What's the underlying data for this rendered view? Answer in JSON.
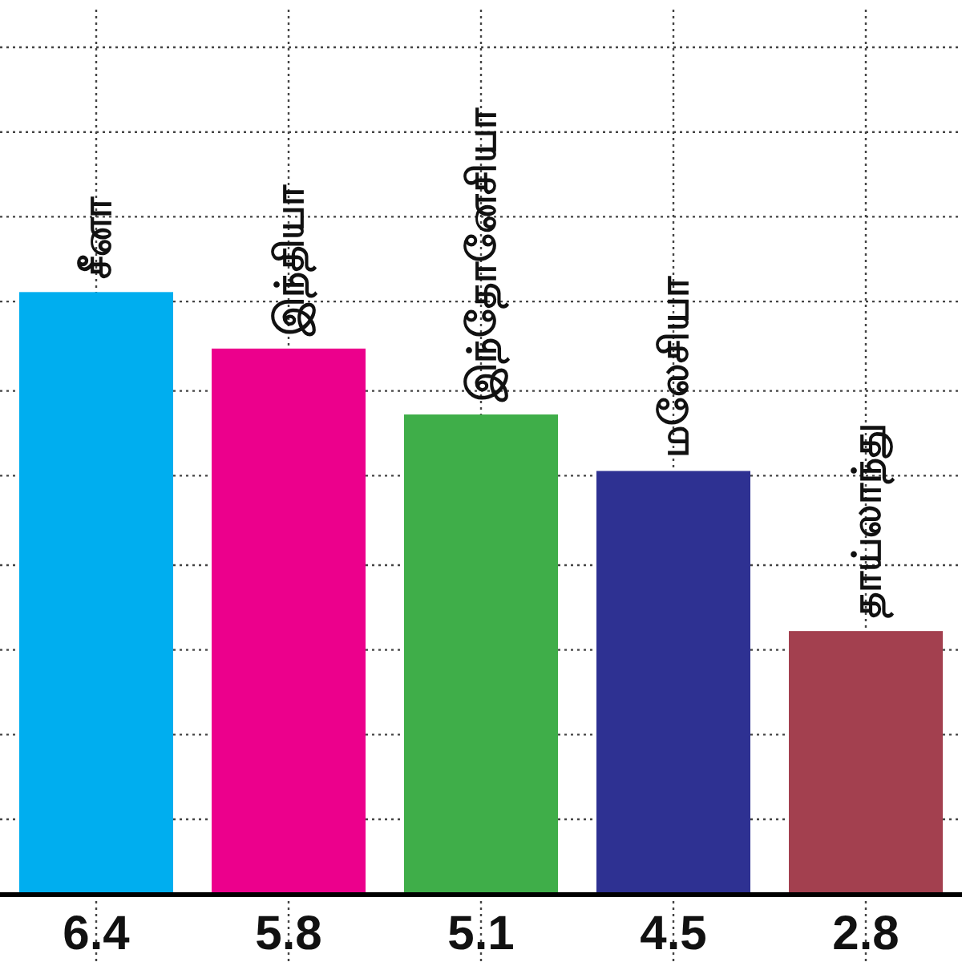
{
  "chart_data": {
    "type": "bar",
    "categories": [
      "சீனா",
      "இந்தியா",
      "இந்தோனேசியா",
      "மலேசியா",
      "தாய்லாந்து"
    ],
    "values": [
      6.4,
      5.8,
      5.1,
      4.5,
      2.8
    ],
    "colors": [
      "#00aeef",
      "#ec008c",
      "#3fae49",
      "#2e3192",
      "#a3404f"
    ],
    "data_labels": true,
    "ylim": [
      0,
      9.4
    ],
    "yticks": [
      {
        "value": 0.8,
        "label": null
      },
      {
        "value": 1.7,
        "label": null
      },
      {
        "value": 2.6,
        "label": null
      },
      {
        "value": 3.5,
        "label": null
      },
      {
        "value": 4.45,
        "label": null
      },
      {
        "value": 5.35,
        "label": null
      },
      {
        "value": 6.3,
        "label": null
      },
      {
        "value": 7.2,
        "label": null
      },
      {
        "value": 8.1,
        "label": null
      },
      {
        "value": 9.0,
        "label": null
      }
    ],
    "grid": true
  }
}
